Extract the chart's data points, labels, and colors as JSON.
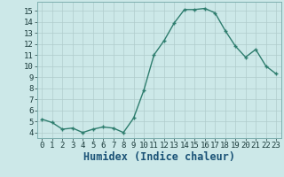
{
  "x": [
    0,
    1,
    2,
    3,
    4,
    5,
    6,
    7,
    8,
    9,
    10,
    11,
    12,
    13,
    14,
    15,
    16,
    17,
    18,
    19,
    20,
    21,
    22,
    23
  ],
  "y": [
    5.2,
    4.9,
    4.3,
    4.4,
    4.0,
    4.3,
    4.5,
    4.4,
    4.0,
    5.3,
    7.8,
    11.0,
    12.3,
    13.9,
    15.1,
    15.1,
    15.2,
    14.8,
    13.2,
    11.8,
    10.8,
    11.5,
    10.0,
    9.3
  ],
  "line_color": "#2e7d6e",
  "marker": "+",
  "marker_size": 3,
  "marker_edge_width": 1.0,
  "bg_color": "#cce8e8",
  "grid_color": "#b0cccc",
  "xlabel": "Humidex (Indice chaleur)",
  "xlabel_color": "#1a5276",
  "xlim": [
    -0.5,
    23.5
  ],
  "ylim": [
    3.5,
    15.8
  ],
  "yticks": [
    4,
    5,
    6,
    7,
    8,
    9,
    10,
    11,
    12,
    13,
    14,
    15
  ],
  "xticks": [
    0,
    1,
    2,
    3,
    4,
    5,
    6,
    7,
    8,
    9,
    10,
    11,
    12,
    13,
    14,
    15,
    16,
    17,
    18,
    19,
    20,
    21,
    22,
    23
  ],
  "tick_fontsize": 6.5,
  "xlabel_fontsize": 8.5,
  "line_width": 1.0,
  "spine_color": "#7fb0b0"
}
